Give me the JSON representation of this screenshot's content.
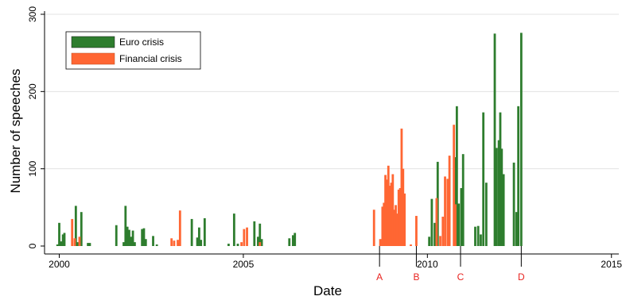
{
  "chart_data": {
    "type": "bar",
    "title": "",
    "xlabel": "Date",
    "ylabel": "Number of speeches",
    "xlim": [
      1999.6,
      2015.2
    ],
    "ylim": [
      0,
      300
    ],
    "x_ticks": [
      2000,
      2005,
      2010,
      2015
    ],
    "y_ticks": [
      0,
      100,
      200,
      300
    ],
    "grid": "horizontal",
    "legend_position": "top-left",
    "colors": {
      "euro": "#2e7d2e",
      "financial": "#ff6633",
      "event": "#e8231f"
    },
    "events": [
      {
        "label": "A",
        "x": 2008.7
      },
      {
        "label": "B",
        "x": 2009.7
      },
      {
        "label": "C",
        "x": 2010.9
      },
      {
        "label": "D",
        "x": 2012.55
      }
    ],
    "series": [
      {
        "name": "Euro crisis",
        "key": "euro",
        "points": [
          [
            1999.95,
            2
          ],
          [
            2000.0,
            30
          ],
          [
            2000.05,
            6
          ],
          [
            2000.1,
            15
          ],
          [
            2000.14,
            17
          ],
          [
            2000.45,
            52
          ],
          [
            2000.5,
            5
          ],
          [
            2000.6,
            44
          ],
          [
            2000.78,
            4
          ],
          [
            2000.83,
            4
          ],
          [
            2001.55,
            27
          ],
          [
            2001.75,
            5
          ],
          [
            2001.8,
            52
          ],
          [
            2001.85,
            25
          ],
          [
            2001.9,
            21
          ],
          [
            2001.95,
            12
          ],
          [
            2002.0,
            20
          ],
          [
            2002.05,
            5
          ],
          [
            2002.25,
            22
          ],
          [
            2002.3,
            23
          ],
          [
            2002.35,
            9
          ],
          [
            2002.55,
            13
          ],
          [
            2002.65,
            2
          ],
          [
            2003.25,
            4
          ],
          [
            2003.6,
            35
          ],
          [
            2003.75,
            11
          ],
          [
            2003.8,
            24
          ],
          [
            2003.85,
            8
          ],
          [
            2003.95,
            36
          ],
          [
            2004.6,
            3
          ],
          [
            2004.75,
            42
          ],
          [
            2004.85,
            3
          ],
          [
            2005.3,
            32
          ],
          [
            2005.4,
            12
          ],
          [
            2005.45,
            29
          ],
          [
            2005.5,
            9
          ],
          [
            2006.25,
            10
          ],
          [
            2006.35,
            14
          ],
          [
            2006.4,
            17
          ],
          [
            2010.05,
            12
          ],
          [
            2010.12,
            61
          ],
          [
            2010.2,
            30
          ],
          [
            2010.28,
            109
          ],
          [
            2010.75,
            115
          ],
          [
            2010.8,
            181
          ],
          [
            2010.85,
            55
          ],
          [
            2010.92,
            75
          ],
          [
            2010.97,
            119
          ],
          [
            2011.3,
            25
          ],
          [
            2011.38,
            26
          ],
          [
            2011.45,
            15
          ],
          [
            2011.52,
            173
          ],
          [
            2011.6,
            82
          ],
          [
            2011.83,
            275
          ],
          [
            2011.88,
            127
          ],
          [
            2011.94,
            137
          ],
          [
            2011.98,
            173
          ],
          [
            2012.02,
            126
          ],
          [
            2012.07,
            93
          ],
          [
            2012.35,
            108
          ],
          [
            2012.42,
            44
          ],
          [
            2012.47,
            181
          ],
          [
            2012.55,
            276
          ]
        ]
      },
      {
        "name": "Financial crisis",
        "key": "financial",
        "points": [
          [
            2000.35,
            35
          ],
          [
            2000.42,
            10
          ],
          [
            2000.55,
            12
          ],
          [
            2003.05,
            10
          ],
          [
            2003.12,
            7
          ],
          [
            2003.22,
            8
          ],
          [
            2003.28,
            46
          ],
          [
            2004.95,
            5
          ],
          [
            2005.02,
            22
          ],
          [
            2005.1,
            24
          ],
          [
            2005.45,
            5
          ],
          [
            2008.55,
            47
          ],
          [
            2008.72,
            9
          ],
          [
            2008.78,
            51
          ],
          [
            2008.82,
            56
          ],
          [
            2008.86,
            92
          ],
          [
            2008.9,
            86
          ],
          [
            2008.94,
            104
          ],
          [
            2008.98,
            78
          ],
          [
            2009.02,
            82
          ],
          [
            2009.06,
            93
          ],
          [
            2009.1,
            47
          ],
          [
            2009.14,
            53
          ],
          [
            2009.18,
            42
          ],
          [
            2009.22,
            73
          ],
          [
            2009.26,
            75
          ],
          [
            2009.3,
            152
          ],
          [
            2009.34,
            100
          ],
          [
            2009.38,
            68
          ],
          [
            2009.55,
            2
          ],
          [
            2009.7,
            39
          ],
          [
            2010.25,
            62
          ],
          [
            2010.35,
            13
          ],
          [
            2010.42,
            38
          ],
          [
            2010.48,
            90
          ],
          [
            2010.55,
            87
          ],
          [
            2010.6,
            117
          ],
          [
            2010.72,
            157
          ],
          [
            2010.76,
            54
          ]
        ]
      }
    ]
  }
}
